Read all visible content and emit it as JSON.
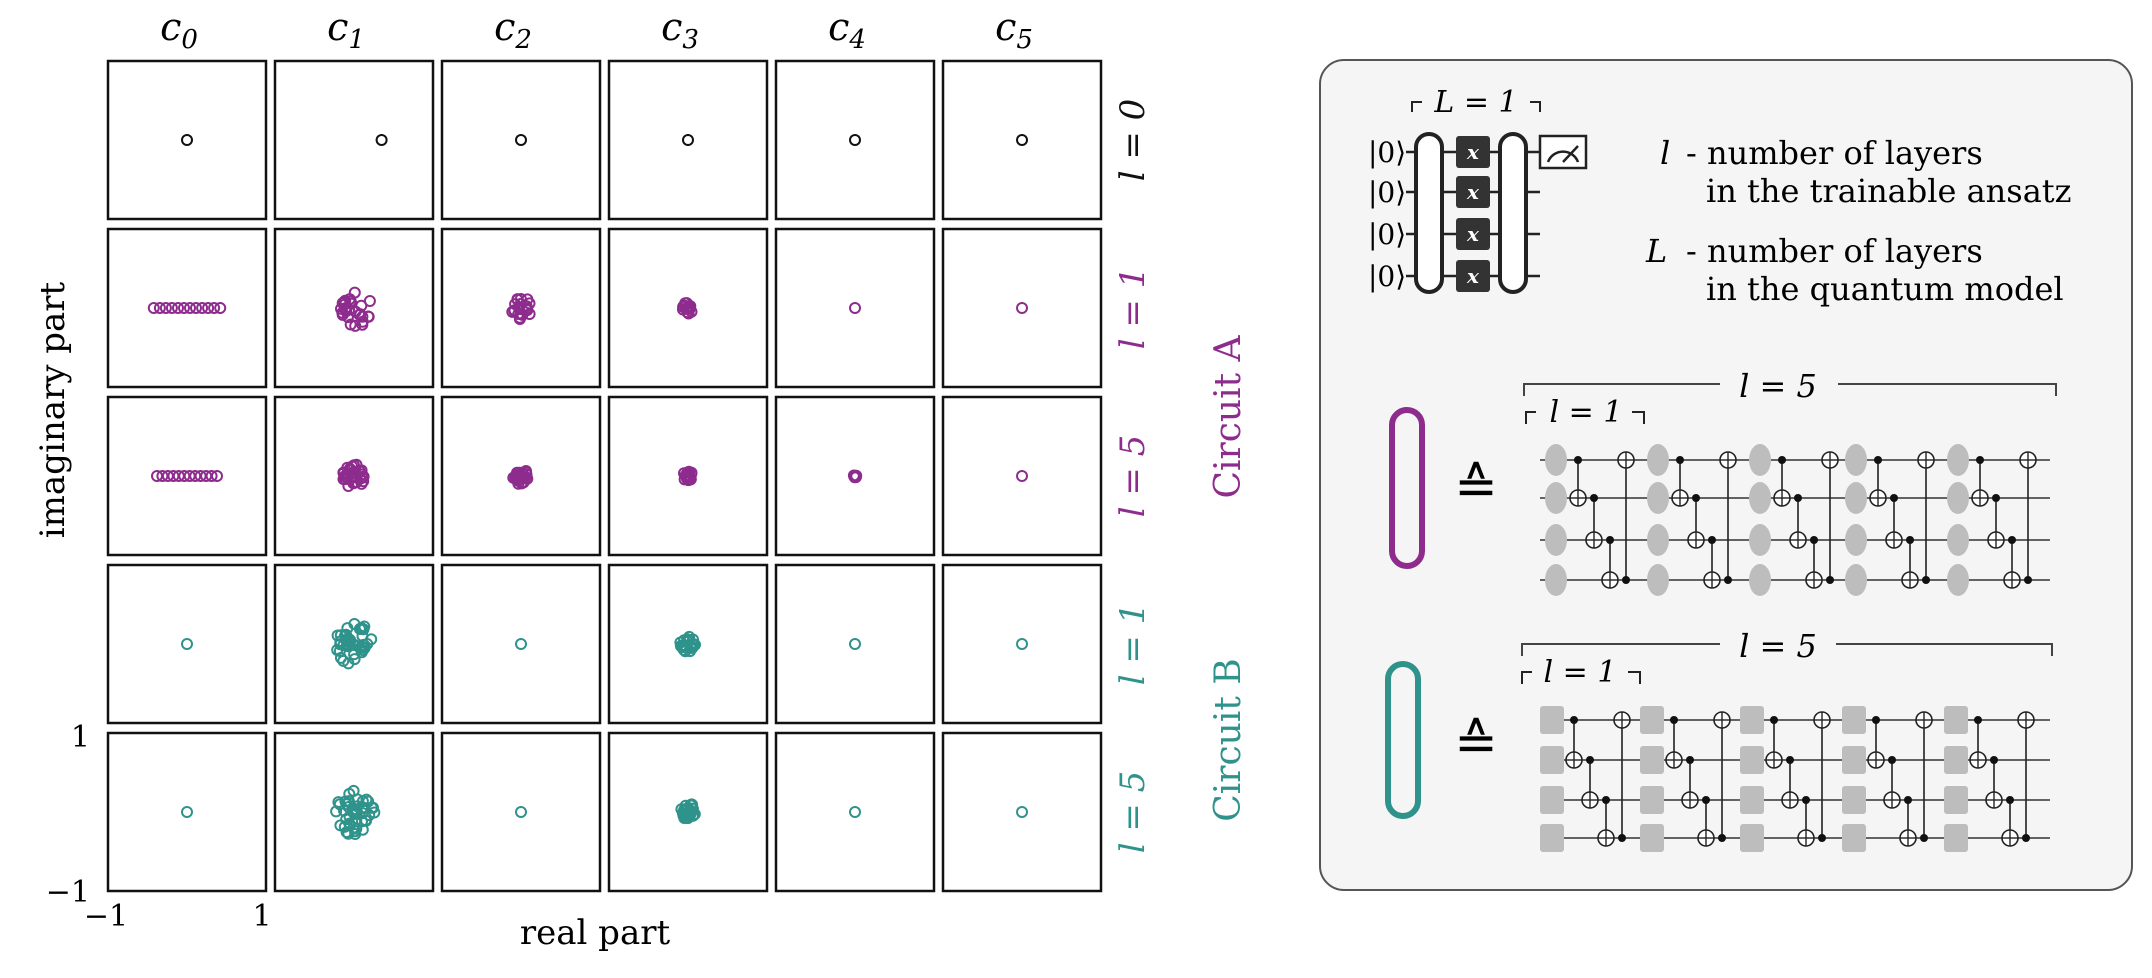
{
  "colors": {
    "black": "#111111",
    "circuit_a": "#8e2c8e",
    "circuit_b": "#2f938c",
    "panel_bg": "#f5f5f5",
    "gate_gray": "#bdbdbd",
    "gate_dark": "#333333"
  },
  "grid": {
    "column_labels": [
      {
        "base": "c",
        "sub": "0"
      },
      {
        "base": "c",
        "sub": "1"
      },
      {
        "base": "c",
        "sub": "2"
      },
      {
        "base": "c",
        "sub": "3"
      },
      {
        "base": "c",
        "sub": "4"
      },
      {
        "base": "c",
        "sub": "5"
      }
    ],
    "rows": [
      {
        "label": "l = 0",
        "color_key": "black"
      },
      {
        "label": "l = 1",
        "color_key": "circuit_a"
      },
      {
        "label": "l = 5",
        "color_key": "circuit_a"
      },
      {
        "label": "l = 1",
        "color_key": "circuit_b"
      },
      {
        "label": "l = 5",
        "color_key": "circuit_b"
      }
    ],
    "group_labels": [
      {
        "text": "Circuit A",
        "color_key": "circuit_a"
      },
      {
        "text": "Circuit B",
        "color_key": "circuit_b"
      }
    ],
    "x_axis_label": "real part",
    "y_axis_label": "imaginary part",
    "x_ticks": [
      "−1",
      "1"
    ],
    "y_ticks": [
      "1",
      "−1"
    ],
    "cells": [
      [
        {
          "type": "point",
          "cx": 0,
          "cy": 0
        },
        {
          "type": "point",
          "cx": 0.35,
          "cy": 0
        },
        {
          "type": "point",
          "cx": 0,
          "cy": 0
        },
        {
          "type": "point",
          "cx": 0,
          "cy": 0
        },
        {
          "type": "point",
          "cx": 0,
          "cy": 0
        },
        {
          "type": "point",
          "cx": 0,
          "cy": 0
        }
      ],
      [
        {
          "type": "line",
          "cx": 0,
          "cy": 0,
          "spread": 0.42,
          "n": 12
        },
        {
          "type": "cluster",
          "cx": 0,
          "cy": 0,
          "spread": 0.22,
          "n": 28
        },
        {
          "type": "cluster",
          "cx": 0,
          "cy": 0,
          "spread": 0.13,
          "n": 20
        },
        {
          "type": "cluster",
          "cx": 0,
          "cy": 0,
          "spread": 0.07,
          "n": 14
        },
        {
          "type": "point",
          "cx": 0,
          "cy": 0
        },
        {
          "type": "point",
          "cx": 0,
          "cy": 0
        }
      ],
      [
        {
          "type": "line",
          "cx": 0,
          "cy": 0,
          "spread": 0.38,
          "n": 12
        },
        {
          "type": "cluster",
          "cx": 0,
          "cy": 0,
          "spread": 0.14,
          "n": 32
        },
        {
          "type": "cluster",
          "cx": 0,
          "cy": 0,
          "spread": 0.1,
          "n": 26
        },
        {
          "type": "cluster",
          "cx": 0,
          "cy": 0,
          "spread": 0.06,
          "n": 16
        },
        {
          "type": "cluster",
          "cx": 0,
          "cy": 0,
          "spread": 0.02,
          "n": 6
        },
        {
          "type": "point",
          "cx": 0,
          "cy": 0
        }
      ],
      [
        {
          "type": "point",
          "cx": 0,
          "cy": 0
        },
        {
          "type": "cluster",
          "cx": 0,
          "cy": 0,
          "spread": 0.24,
          "n": 40
        },
        {
          "type": "point",
          "cx": 0,
          "cy": 0
        },
        {
          "type": "cluster",
          "cx": 0,
          "cy": 0,
          "spread": 0.1,
          "n": 28
        },
        {
          "type": "point",
          "cx": 0,
          "cy": 0
        },
        {
          "type": "point",
          "cx": 0,
          "cy": 0
        }
      ],
      [
        {
          "type": "point",
          "cx": 0,
          "cy": 0
        },
        {
          "type": "cluster",
          "cx": 0,
          "cy": 0,
          "spread": 0.26,
          "n": 44
        },
        {
          "type": "point",
          "cx": 0,
          "cy": 0
        },
        {
          "type": "cluster",
          "cx": 0,
          "cy": 0,
          "spread": 0.1,
          "n": 28
        },
        {
          "type": "point",
          "cx": 0,
          "cy": 0
        },
        {
          "type": "point",
          "cx": 0,
          "cy": 0
        }
      ]
    ]
  },
  "panel": {
    "model_layer_label": "L = 1",
    "ket_label": "|0⟩",
    "gate_label": "x",
    "legend": [
      {
        "symbol": "l",
        "line1": "- number of layers",
        "line2": "in the trainable ansatz"
      },
      {
        "symbol": "L",
        "line1": "- number of layers",
        "line2": "in the quantum model"
      }
    ],
    "ansatz_a": {
      "outer_label": "l = 5",
      "inner_label": "l = 1",
      "equiv": "≙"
    },
    "ansatz_b": {
      "outer_label": "l = 5",
      "inner_label": "l = 1",
      "equiv": "≙"
    }
  }
}
